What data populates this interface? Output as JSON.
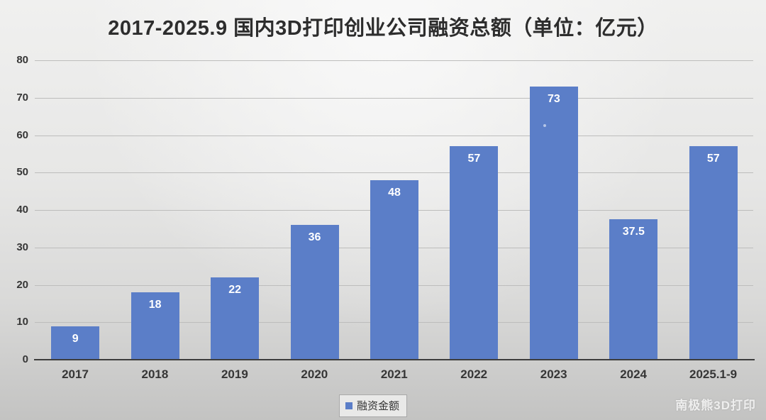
{
  "title": "2017-2025.9 国内3D打印创业公司融资总额（单位：亿元）",
  "legend": {
    "label": "融资金额"
  },
  "watermark": "南极熊3D打印",
  "colors": {
    "bar": "#5b7ec8",
    "title_text": "#2d2d2d",
    "axis_text": "#363636",
    "bar_label_text": "#ffffff",
    "gridline": "#bdbdbc",
    "axis_line": "#3d3d3d"
  },
  "chart_data": {
    "type": "bar",
    "title": "2017-2025.9 国内3D打印创业公司融资总额（单位：亿元）",
    "categories": [
      "2017",
      "2018",
      "2019",
      "2020",
      "2021",
      "2022",
      "2023",
      "2024",
      "2025.1-9"
    ],
    "values": [
      9,
      18,
      22,
      36,
      48,
      57,
      73,
      37.5,
      57
    ],
    "series_name": "融资金额",
    "xlabel": "",
    "ylabel": "",
    "ylim": [
      0,
      80
    ],
    "yticks": [
      0,
      10,
      20,
      30,
      40,
      50,
      60,
      70,
      80
    ],
    "grid": true,
    "data_labels": "inside-top",
    "legend_position": "bottom-center"
  }
}
